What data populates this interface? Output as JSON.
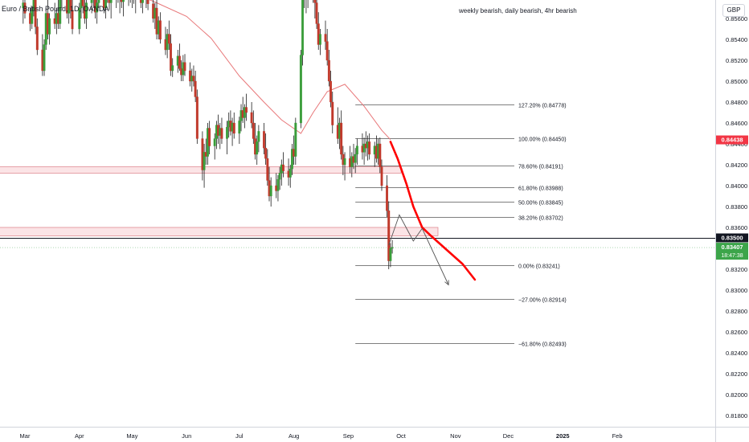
{
  "symbol_title": "Euro / British Pound, 1D, OANDA",
  "currency_label": "GBP",
  "annotation": "weekly bearish, daily bearish, 4hr bearish",
  "colors": {
    "up": "#26a69a",
    "up_body": "#3a9d3a",
    "down": "#c0392b",
    "wick": "#1e1e1e",
    "ma": "#e8787a",
    "projection": "#ff0000",
    "zone_fill": "#fbe4e6",
    "zone_border": "#e08a93",
    "current_price_badge": "#3ca54a",
    "target_badge": "#f23645",
    "level_badge": "#131722"
  },
  "chart_data": {
    "type": "candlestick",
    "price_axis": {
      "ticks": [
        "0.85600",
        "0.85400",
        "0.85200",
        "0.85000",
        "0.84800",
        "0.84600",
        "0.84400",
        "0.84200",
        "0.84000",
        "0.83800",
        "0.83600",
        "0.83400",
        "0.83200",
        "0.83000",
        "0.82800",
        "0.82600",
        "0.82400",
        "0.82200",
        "0.82000",
        "0.81800"
      ]
    },
    "time_axis": {
      "labels": [
        "Mar",
        "Apr",
        "May",
        "Jun",
        "Jul",
        "Aug",
        "Sep",
        "Oct",
        "Nov",
        "Dec",
        "2025",
        "Feb"
      ],
      "bold": [
        "2025"
      ]
    },
    "price_badges": [
      {
        "label": "0.84438",
        "price": 0.84438,
        "kind": "target"
      },
      {
        "label": "0.83500",
        "price": 0.835,
        "kind": "level"
      },
      {
        "label": "0.83407",
        "sub": "18:47:38",
        "price": 0.83407,
        "kind": "current"
      }
    ],
    "fib_levels": [
      {
        "ratio_label": "127.20%",
        "price": 0.84778,
        "text": "127.20% (0.84778)"
      },
      {
        "ratio_label": "100.00%",
        "price": 0.8445,
        "text": "100.00% (0.84450)"
      },
      {
        "ratio_label": "78.60%",
        "price": 0.84191,
        "text": "78.60% (0.84191)"
      },
      {
        "ratio_label": "61.80%",
        "price": 0.83988,
        "text": "61.80% (0.83988)"
      },
      {
        "ratio_label": "50.00%",
        "price": 0.83845,
        "text": "50.00% (0.83845)"
      },
      {
        "ratio_label": "38.20%",
        "price": 0.83702,
        "text": "38.20% (0.83702)"
      },
      {
        "ratio_label": "0.00%",
        "price": 0.83241,
        "text": "0.00% (0.83241)"
      },
      {
        "ratio_label": "-27.00%",
        "price": 0.82914,
        "text": "−27.00% (0.82914)"
      },
      {
        "ratio_label": "-61.80%",
        "price": 0.82493,
        "text": "−61.80% (0.82493)"
      }
    ],
    "zones": [
      {
        "top": 0.8418,
        "bottom": 0.8412,
        "end_date": "2024-10-01"
      },
      {
        "top": 0.836,
        "bottom": 0.8352,
        "end_date": "2024-10-22"
      }
    ],
    "horizontal_levels": [
      0.835,
      0.83407
    ],
    "projection_path": [
      [
        "2024-09-25",
        0.8442
      ],
      [
        "2024-09-29",
        0.8426
      ],
      [
        "2024-10-04",
        0.8402
      ],
      [
        "2024-10-08",
        0.838
      ],
      [
        "2024-10-13",
        0.836
      ],
      [
        "2024-10-18",
        0.8352
      ],
      [
        "2024-10-26",
        0.834
      ],
      [
        "2024-11-05",
        0.8325
      ],
      [
        "2024-11-12",
        0.831
      ]
    ],
    "zigzag_path": [
      [
        "2024-09-24",
        0.8343
      ],
      [
        "2024-09-30",
        0.8372
      ],
      [
        "2024-10-08",
        0.8347
      ],
      [
        "2024-10-13",
        0.8359
      ],
      [
        "2024-10-28",
        0.8305
      ]
    ],
    "ma_points": [
      [
        "2024-02-29",
        0.8592
      ],
      [
        "2024-03-15",
        0.8591
      ],
      [
        "2024-04-01",
        0.859
      ],
      [
        "2024-04-15",
        0.8588
      ],
      [
        "2024-05-01",
        0.8585
      ],
      [
        "2024-05-15",
        0.8575
      ],
      [
        "2024-06-01",
        0.8562
      ],
      [
        "2024-06-15",
        0.8541
      ],
      [
        "2024-07-01",
        0.8505
      ],
      [
        "2024-07-15",
        0.848
      ],
      [
        "2024-07-25",
        0.8463
      ],
      [
        "2024-08-05",
        0.845
      ],
      [
        "2024-08-12",
        0.847
      ],
      [
        "2024-08-20",
        0.849
      ],
      [
        "2024-08-30",
        0.8497
      ],
      [
        "2024-09-10",
        0.8476
      ],
      [
        "2024-09-20",
        0.8453
      ],
      [
        "2024-09-25",
        0.8444
      ]
    ],
    "candles": [
      [
        "2024-02-29",
        0.857,
        0.8585,
        0.8555,
        0.8575
      ],
      [
        "2024-03-01",
        0.8575,
        0.8582,
        0.856,
        0.8565
      ],
      [
        "2024-03-04",
        0.8565,
        0.857,
        0.8548,
        0.8555
      ],
      [
        "2024-03-05",
        0.8555,
        0.8572,
        0.855,
        0.8568
      ],
      [
        "2024-03-06",
        0.8568,
        0.859,
        0.8562,
        0.8585
      ],
      [
        "2024-03-07",
        0.8585,
        0.8588,
        0.8545,
        0.8552
      ],
      [
        "2024-03-08",
        0.8552,
        0.856,
        0.8525,
        0.853
      ],
      [
        "2024-03-11",
        0.853,
        0.8545,
        0.8505,
        0.851
      ],
      [
        "2024-03-12",
        0.851,
        0.854,
        0.8505,
        0.8535
      ],
      [
        "2024-03-13",
        0.8535,
        0.857,
        0.853,
        0.8565
      ],
      [
        "2024-03-14",
        0.8565,
        0.858,
        0.854,
        0.8545
      ],
      [
        "2024-03-15",
        0.8545,
        0.8565,
        0.8535,
        0.856
      ],
      [
        "2024-03-18",
        0.856,
        0.8575,
        0.855,
        0.8555
      ],
      [
        "2024-03-19",
        0.8555,
        0.857,
        0.8545,
        0.8565
      ],
      [
        "2024-03-20",
        0.8565,
        0.858,
        0.855,
        0.8555
      ],
      [
        "2024-03-21",
        0.8555,
        0.859,
        0.855,
        0.8585
      ],
      [
        "2024-03-22",
        0.8585,
        0.8595,
        0.857,
        0.8578
      ],
      [
        "2024-03-25",
        0.8578,
        0.8592,
        0.856,
        0.8565
      ],
      [
        "2024-03-26",
        0.8565,
        0.8585,
        0.8555,
        0.858
      ],
      [
        "2024-03-27",
        0.858,
        0.859,
        0.856,
        0.8568
      ],
      [
        "2024-03-28",
        0.8568,
        0.858,
        0.8545,
        0.855
      ],
      [
        "2024-04-01",
        0.855,
        0.8575,
        0.8545,
        0.857
      ],
      [
        "2024-04-02",
        0.857,
        0.8588,
        0.856,
        0.8582
      ],
      [
        "2024-04-03",
        0.8582,
        0.8596,
        0.8565,
        0.8572
      ],
      [
        "2024-04-04",
        0.8572,
        0.8585,
        0.8555,
        0.856
      ],
      [
        "2024-04-05",
        0.856,
        0.8578,
        0.855,
        0.8575
      ],
      [
        "2024-04-08",
        0.8575,
        0.8592,
        0.8565,
        0.8588
      ],
      [
        "2024-04-09",
        0.8588,
        0.8596,
        0.857,
        0.8578
      ],
      [
        "2024-04-10",
        0.8578,
        0.859,
        0.856,
        0.8566
      ],
      [
        "2024-04-11",
        0.8566,
        0.858,
        0.8555,
        0.8575
      ],
      [
        "2024-04-12",
        0.8575,
        0.8596,
        0.857,
        0.859
      ],
      [
        "2024-04-15",
        0.859,
        0.8596,
        0.8565,
        0.857
      ],
      [
        "2024-04-16",
        0.857,
        0.8588,
        0.856,
        0.8584
      ],
      [
        "2024-04-17",
        0.8584,
        0.8596,
        0.8575,
        0.859
      ],
      [
        "2024-04-18",
        0.859,
        0.8596,
        0.8568,
        0.8575
      ],
      [
        "2024-04-19",
        0.8575,
        0.859,
        0.856,
        0.8585
      ],
      [
        "2024-04-22",
        0.8585,
        0.8596,
        0.857,
        0.8592
      ],
      [
        "2024-04-23",
        0.8592,
        0.8596,
        0.8575,
        0.858
      ],
      [
        "2024-04-24",
        0.858,
        0.8592,
        0.8565,
        0.8588
      ],
      [
        "2024-04-25",
        0.8588,
        0.8596,
        0.857,
        0.8576
      ],
      [
        "2024-04-26",
        0.8576,
        0.859,
        0.8562,
        0.8585
      ],
      [
        "2024-04-29",
        0.8585,
        0.8596,
        0.8572,
        0.859
      ],
      [
        "2024-04-30",
        0.859,
        0.8596,
        0.8575,
        0.8582
      ],
      [
        "2024-05-01",
        0.8582,
        0.8596,
        0.857,
        0.8592
      ],
      [
        "2024-05-02",
        0.8592,
        0.8596,
        0.8574,
        0.858
      ],
      [
        "2024-05-03",
        0.858,
        0.859,
        0.8565,
        0.8588
      ],
      [
        "2024-05-06",
        0.8588,
        0.8596,
        0.857,
        0.8575
      ],
      [
        "2024-05-07",
        0.8575,
        0.8592,
        0.8565,
        0.859
      ],
      [
        "2024-05-08",
        0.859,
        0.8596,
        0.8578,
        0.8586
      ],
      [
        "2024-05-09",
        0.8586,
        0.8596,
        0.857,
        0.8594
      ],
      [
        "2024-05-10",
        0.8594,
        0.8596,
        0.8568,
        0.8574
      ],
      [
        "2024-05-13",
        0.8574,
        0.8588,
        0.8556,
        0.856
      ],
      [
        "2024-05-14",
        0.856,
        0.8575,
        0.855,
        0.857
      ],
      [
        "2024-05-15",
        0.857,
        0.8582,
        0.854,
        0.8545
      ],
      [
        "2024-05-16",
        0.8545,
        0.8562,
        0.854,
        0.8558
      ],
      [
        "2024-05-17",
        0.8558,
        0.8566,
        0.8536,
        0.854
      ],
      [
        "2024-05-20",
        0.854,
        0.8552,
        0.8525,
        0.853
      ],
      [
        "2024-05-21",
        0.853,
        0.855,
        0.8522,
        0.8545
      ],
      [
        "2024-05-22",
        0.8545,
        0.8558,
        0.853,
        0.8536
      ],
      [
        "2024-05-23",
        0.8536,
        0.8545,
        0.8505,
        0.851
      ],
      [
        "2024-05-24",
        0.851,
        0.8522,
        0.8504,
        0.8515
      ],
      [
        "2024-05-27",
        0.8515,
        0.853,
        0.8508,
        0.8524
      ],
      [
        "2024-05-28",
        0.8524,
        0.8536,
        0.851,
        0.8512
      ],
      [
        "2024-05-29",
        0.8512,
        0.852,
        0.85,
        0.8506
      ],
      [
        "2024-05-30",
        0.8506,
        0.8525,
        0.85,
        0.8518
      ],
      [
        "2024-05-31",
        0.8518,
        0.8526,
        0.8505,
        0.851
      ],
      [
        "2024-06-03",
        0.851,
        0.8518,
        0.8495,
        0.85
      ],
      [
        "2024-06-04",
        0.85,
        0.8512,
        0.849,
        0.8505
      ],
      [
        "2024-06-05",
        0.8505,
        0.8515,
        0.8495,
        0.85
      ],
      [
        "2024-06-06",
        0.85,
        0.851,
        0.848,
        0.8485
      ],
      [
        "2024-06-07",
        0.8485,
        0.8492,
        0.844,
        0.8445
      ],
      [
        "2024-06-10",
        0.8445,
        0.8452,
        0.8405,
        0.8415
      ],
      [
        "2024-06-11",
        0.8415,
        0.844,
        0.8398,
        0.8432
      ],
      [
        "2024-06-12",
        0.8432,
        0.8445,
        0.842,
        0.8428
      ],
      [
        "2024-06-13",
        0.8428,
        0.846,
        0.842,
        0.8455
      ],
      [
        "2024-06-14",
        0.8455,
        0.8462,
        0.843,
        0.8438
      ],
      [
        "2024-06-17",
        0.8438,
        0.845,
        0.8425,
        0.8445
      ],
      [
        "2024-06-18",
        0.8445,
        0.8462,
        0.8435,
        0.8458
      ],
      [
        "2024-06-19",
        0.8458,
        0.8468,
        0.844,
        0.8448
      ],
      [
        "2024-06-20",
        0.8448,
        0.846,
        0.8435,
        0.8455
      ],
      [
        "2024-06-21",
        0.8455,
        0.8465,
        0.844,
        0.8445
      ],
      [
        "2024-06-24",
        0.8445,
        0.8462,
        0.843,
        0.8456
      ],
      [
        "2024-06-25",
        0.8456,
        0.847,
        0.8446,
        0.8462
      ],
      [
        "2024-06-26",
        0.8462,
        0.8472,
        0.8448,
        0.8452
      ],
      [
        "2024-06-27",
        0.8452,
        0.8465,
        0.8438,
        0.846
      ],
      [
        "2024-06-28",
        0.846,
        0.847,
        0.8445,
        0.845
      ],
      [
        "2024-07-01",
        0.845,
        0.8466,
        0.844,
        0.8462
      ],
      [
        "2024-07-02",
        0.8462,
        0.8478,
        0.8452,
        0.8472
      ],
      [
        "2024-07-03",
        0.8472,
        0.8485,
        0.846,
        0.8465
      ],
      [
        "2024-07-04",
        0.8465,
        0.8478,
        0.8455,
        0.8475
      ],
      [
        "2024-07-05",
        0.8475,
        0.8488,
        0.8462,
        0.847
      ],
      [
        "2024-07-08",
        0.847,
        0.848,
        0.8455,
        0.846
      ],
      [
        "2024-07-09",
        0.846,
        0.8472,
        0.844,
        0.8445
      ],
      [
        "2024-07-10",
        0.8445,
        0.846,
        0.8425,
        0.843
      ],
      [
        "2024-07-11",
        0.843,
        0.8448,
        0.842,
        0.8442
      ],
      [
        "2024-07-12",
        0.8442,
        0.8458,
        0.8432,
        0.8452
      ],
      [
        "2024-07-15",
        0.8452,
        0.846,
        0.843,
        0.8436
      ],
      [
        "2024-07-16",
        0.8436,
        0.845,
        0.842,
        0.8426
      ],
      [
        "2024-07-17",
        0.8426,
        0.8435,
        0.84,
        0.8405
      ],
      [
        "2024-07-18",
        0.8405,
        0.8418,
        0.8385,
        0.839
      ],
      [
        "2024-07-19",
        0.839,
        0.8408,
        0.838,
        0.84
      ],
      [
        "2024-07-22",
        0.84,
        0.8412,
        0.8388,
        0.8395
      ],
      [
        "2024-07-23",
        0.8395,
        0.841,
        0.8385,
        0.8406
      ],
      [
        "2024-07-24",
        0.8406,
        0.8418,
        0.8396,
        0.8412
      ],
      [
        "2024-07-25",
        0.8412,
        0.8425,
        0.84,
        0.842
      ],
      [
        "2024-07-26",
        0.842,
        0.8432,
        0.8408,
        0.8414
      ],
      [
        "2024-07-29",
        0.8414,
        0.8426,
        0.84,
        0.8408
      ],
      [
        "2024-07-30",
        0.8408,
        0.842,
        0.8398,
        0.8416
      ],
      [
        "2024-07-31",
        0.8416,
        0.844,
        0.841,
        0.8435
      ],
      [
        "2024-08-01",
        0.8435,
        0.8448,
        0.842,
        0.8428
      ],
      [
        "2024-08-02",
        0.8428,
        0.8465,
        0.842,
        0.846
      ],
      [
        "2024-08-05",
        0.846,
        0.853,
        0.8455,
        0.8525
      ],
      [
        "2024-08-06",
        0.8525,
        0.859,
        0.8515,
        0.8585
      ],
      [
        "2024-08-07",
        0.8585,
        0.8596,
        0.857,
        0.859
      ],
      [
        "2024-08-08",
        0.859,
        0.8596,
        0.8565,
        0.8578
      ],
      [
        "2024-08-09",
        0.8578,
        0.8596,
        0.857,
        0.8592
      ],
      [
        "2024-08-12",
        0.8592,
        0.8596,
        0.8575,
        0.858
      ],
      [
        "2024-08-13",
        0.858,
        0.8596,
        0.856,
        0.8575
      ],
      [
        "2024-08-14",
        0.8575,
        0.859,
        0.855,
        0.8555
      ],
      [
        "2024-08-15",
        0.8555,
        0.8566,
        0.853,
        0.8535
      ],
      [
        "2024-08-16",
        0.8535,
        0.855,
        0.8525,
        0.8545
      ],
      [
        "2024-08-19",
        0.8545,
        0.8558,
        0.853,
        0.8538
      ],
      [
        "2024-08-20",
        0.8538,
        0.855,
        0.8515,
        0.852
      ],
      [
        "2024-08-21",
        0.852,
        0.853,
        0.8495,
        0.85
      ],
      [
        "2024-08-22",
        0.85,
        0.851,
        0.8475,
        0.848
      ],
      [
        "2024-08-23",
        0.848,
        0.849,
        0.845,
        0.8458
      ],
      [
        "2024-08-26",
        0.8458,
        0.8475,
        0.844,
        0.8445
      ],
      [
        "2024-08-27",
        0.8445,
        0.8465,
        0.8435,
        0.846
      ],
      [
        "2024-08-28",
        0.846,
        0.8472,
        0.8425,
        0.843
      ],
      [
        "2024-08-29",
        0.843,
        0.8438,
        0.841,
        0.842
      ],
      [
        "2024-08-30",
        0.842,
        0.8432,
        0.8405,
        0.8426
      ],
      [
        "2024-09-02",
        0.8426,
        0.8438,
        0.8412,
        0.8418
      ],
      [
        "2024-09-03",
        0.8418,
        0.8432,
        0.8408,
        0.8428
      ],
      [
        "2024-09-04",
        0.8428,
        0.844,
        0.8416,
        0.8422
      ],
      [
        "2024-09-05",
        0.8422,
        0.8436,
        0.8412,
        0.843
      ],
      [
        "2024-09-06",
        0.843,
        0.8445,
        0.842,
        0.8438
      ],
      [
        "2024-09-09",
        0.8438,
        0.845,
        0.8425,
        0.8432
      ],
      [
        "2024-09-10",
        0.8432,
        0.8446,
        0.842,
        0.844
      ],
      [
        "2024-09-11",
        0.844,
        0.8452,
        0.8428,
        0.8436
      ],
      [
        "2024-09-12",
        0.8436,
        0.8448,
        0.8424,
        0.8442
      ],
      [
        "2024-09-13",
        0.8442,
        0.845,
        0.8425,
        0.843
      ],
      [
        "2024-09-16",
        0.843,
        0.8442,
        0.8418,
        0.8438
      ],
      [
        "2024-09-17",
        0.8438,
        0.8448,
        0.8422,
        0.8426
      ],
      [
        "2024-09-18",
        0.8426,
        0.8445,
        0.842,
        0.844
      ],
      [
        "2024-09-19",
        0.844,
        0.8446,
        0.8412,
        0.8418
      ],
      [
        "2024-09-20",
        0.8418,
        0.8425,
        0.8395,
        0.84
      ],
      [
        "2024-09-23",
        0.84,
        0.841,
        0.837,
        0.8376
      ],
      [
        "2024-09-24",
        0.8376,
        0.8385,
        0.832,
        0.8328
      ],
      [
        "2024-09-25",
        0.8328,
        0.8345,
        0.8322,
        0.834
      ],
      [
        "2024-09-26",
        0.834,
        0.8348,
        0.8335,
        0.8341
      ]
    ]
  }
}
